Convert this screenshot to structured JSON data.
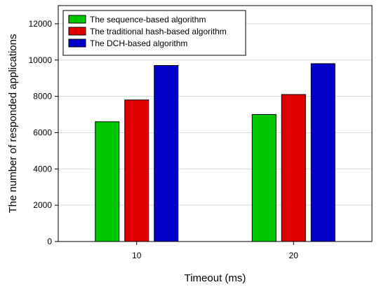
{
  "chart_data": {
    "type": "bar",
    "title": "",
    "xlabel": "Timeout (ms)",
    "ylabel": "The number of responded applications",
    "categories": [
      "10",
      "20"
    ],
    "series": [
      {
        "name": "The sequence-based algorithm",
        "values": [
          6600,
          7000
        ],
        "color": "#00c800"
      },
      {
        "name": "The traditional hash-based algorithm",
        "values": [
          7800,
          8100
        ],
        "color": "#e00000"
      },
      {
        "name": "The DCH-based algorithm",
        "values": [
          9700,
          9800
        ],
        "color": "#0000c8"
      }
    ],
    "ylim": [
      0,
      13000
    ],
    "yticks": [
      0,
      2000,
      4000,
      6000,
      8000,
      10000,
      12000
    ],
    "grid": true,
    "legend_position": "top-left"
  }
}
